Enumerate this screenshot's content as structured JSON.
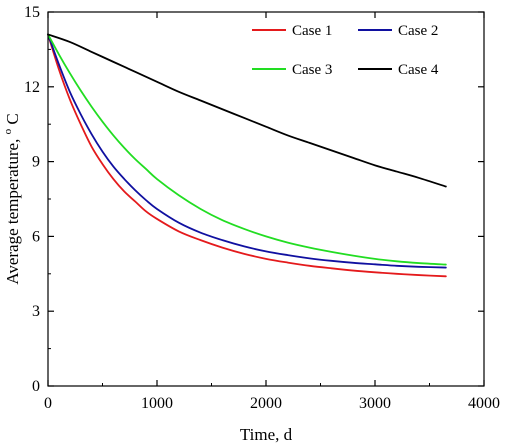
{
  "chart_data": {
    "type": "line",
    "title": "",
    "xlabel": "Time, d",
    "ylabel_main": "Average temperature, ",
    "ylabel_sup": "o",
    "ylabel_unit": "C",
    "xlim": [
      0,
      4000
    ],
    "ylim": [
      0,
      15
    ],
    "xticks": [
      0,
      1000,
      2000,
      3000,
      4000
    ],
    "yticks": [
      0,
      3,
      6,
      9,
      12,
      15
    ],
    "grid": false,
    "legend_position": "top-right",
    "series": [
      {
        "name": "Case 1",
        "color": "#e41a1c",
        "x": [
          0,
          100,
          200,
          300,
          400,
          500,
          600,
          700,
          800,
          900,
          1000,
          1200,
          1400,
          1600,
          1800,
          2000,
          2200,
          2400,
          2600,
          2800,
          3000,
          3200,
          3400,
          3650
        ],
        "y": [
          14.1,
          12.7,
          11.5,
          10.5,
          9.6,
          8.9,
          8.3,
          7.8,
          7.4,
          7.0,
          6.7,
          6.2,
          5.85,
          5.55,
          5.3,
          5.1,
          4.95,
          4.82,
          4.72,
          4.63,
          4.56,
          4.5,
          4.45,
          4.4
        ]
      },
      {
        "name": "Case 2",
        "color": "#1010a0",
        "x": [
          0,
          100,
          200,
          300,
          400,
          500,
          600,
          700,
          800,
          900,
          1000,
          1200,
          1400,
          1600,
          1800,
          2000,
          2200,
          2400,
          2600,
          2800,
          3000,
          3200,
          3400,
          3650
        ],
        "y": [
          14.1,
          12.9,
          11.8,
          10.9,
          10.1,
          9.4,
          8.8,
          8.3,
          7.85,
          7.45,
          7.1,
          6.55,
          6.15,
          5.85,
          5.6,
          5.4,
          5.25,
          5.12,
          5.02,
          4.94,
          4.88,
          4.82,
          4.78,
          4.75
        ]
      },
      {
        "name": "Case 3",
        "color": "#22dd22",
        "x": [
          0,
          100,
          200,
          300,
          400,
          500,
          600,
          700,
          800,
          900,
          1000,
          1200,
          1400,
          1600,
          1800,
          2000,
          2200,
          2400,
          2600,
          2800,
          3000,
          3200,
          3400,
          3650
        ],
        "y": [
          14.1,
          13.3,
          12.55,
          11.85,
          11.2,
          10.6,
          10.05,
          9.55,
          9.1,
          8.7,
          8.3,
          7.65,
          7.1,
          6.65,
          6.3,
          6.0,
          5.75,
          5.55,
          5.38,
          5.23,
          5.1,
          5.0,
          4.93,
          4.87
        ]
      },
      {
        "name": "Case 4",
        "color": "#000000",
        "x": [
          0,
          200,
          400,
          600,
          800,
          1000,
          1200,
          1400,
          1600,
          1800,
          2000,
          2200,
          2400,
          2600,
          2800,
          3000,
          3200,
          3400,
          3650
        ],
        "y": [
          14.1,
          13.8,
          13.4,
          13.0,
          12.6,
          12.2,
          11.8,
          11.45,
          11.1,
          10.75,
          10.4,
          10.05,
          9.75,
          9.45,
          9.15,
          8.85,
          8.6,
          8.35,
          8.0
        ]
      }
    ]
  }
}
